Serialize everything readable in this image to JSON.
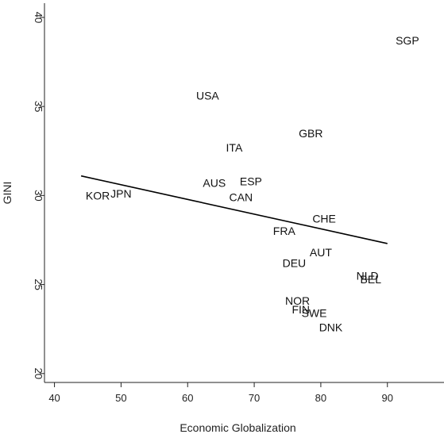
{
  "chart_data": {
    "type": "scatter",
    "title": "",
    "xlabel": "Economic Globalization",
    "ylabel": "GINI",
    "xlim": [
      38.5,
      98.5
    ],
    "ylim": [
      19.5,
      40.8
    ],
    "x_ticks": [
      40,
      50,
      60,
      70,
      80,
      90
    ],
    "y_ticks": [
      20,
      25,
      30,
      35,
      40
    ],
    "grid": false,
    "points": [
      {
        "label": "SGP",
        "x": 93,
        "y": 38.7
      },
      {
        "label": "USA",
        "x": 63,
        "y": 35.6
      },
      {
        "label": "GBR",
        "x": 78.5,
        "y": 33.5
      },
      {
        "label": "ITA",
        "x": 67,
        "y": 32.7
      },
      {
        "label": "AUS",
        "x": 64,
        "y": 30.7
      },
      {
        "label": "ESP",
        "x": 69.5,
        "y": 30.8
      },
      {
        "label": "CAN",
        "x": 68,
        "y": 29.9
      },
      {
        "label": "KOR",
        "x": 46.5,
        "y": 30.0
      },
      {
        "label": "JPN",
        "x": 50,
        "y": 30.1
      },
      {
        "label": "CHE",
        "x": 80.5,
        "y": 28.7
      },
      {
        "label": "FRA",
        "x": 74.5,
        "y": 28.0
      },
      {
        "label": "AUT",
        "x": 80,
        "y": 26.8
      },
      {
        "label": "DEU",
        "x": 76,
        "y": 26.2
      },
      {
        "label": "NLD",
        "x": 87,
        "y": 25.5
      },
      {
        "label": "BEL",
        "x": 87.5,
        "y": 25.3
      },
      {
        "label": "NOR",
        "x": 76.5,
        "y": 24.1
      },
      {
        "label": "FIN",
        "x": 77,
        "y": 23.6
      },
      {
        "label": "SWE",
        "x": 79,
        "y": 23.4
      },
      {
        "label": "DNK",
        "x": 81.5,
        "y": 22.6
      }
    ],
    "fit_line": {
      "x": [
        44,
        90
      ],
      "y": [
        31.1,
        27.3
      ]
    }
  }
}
